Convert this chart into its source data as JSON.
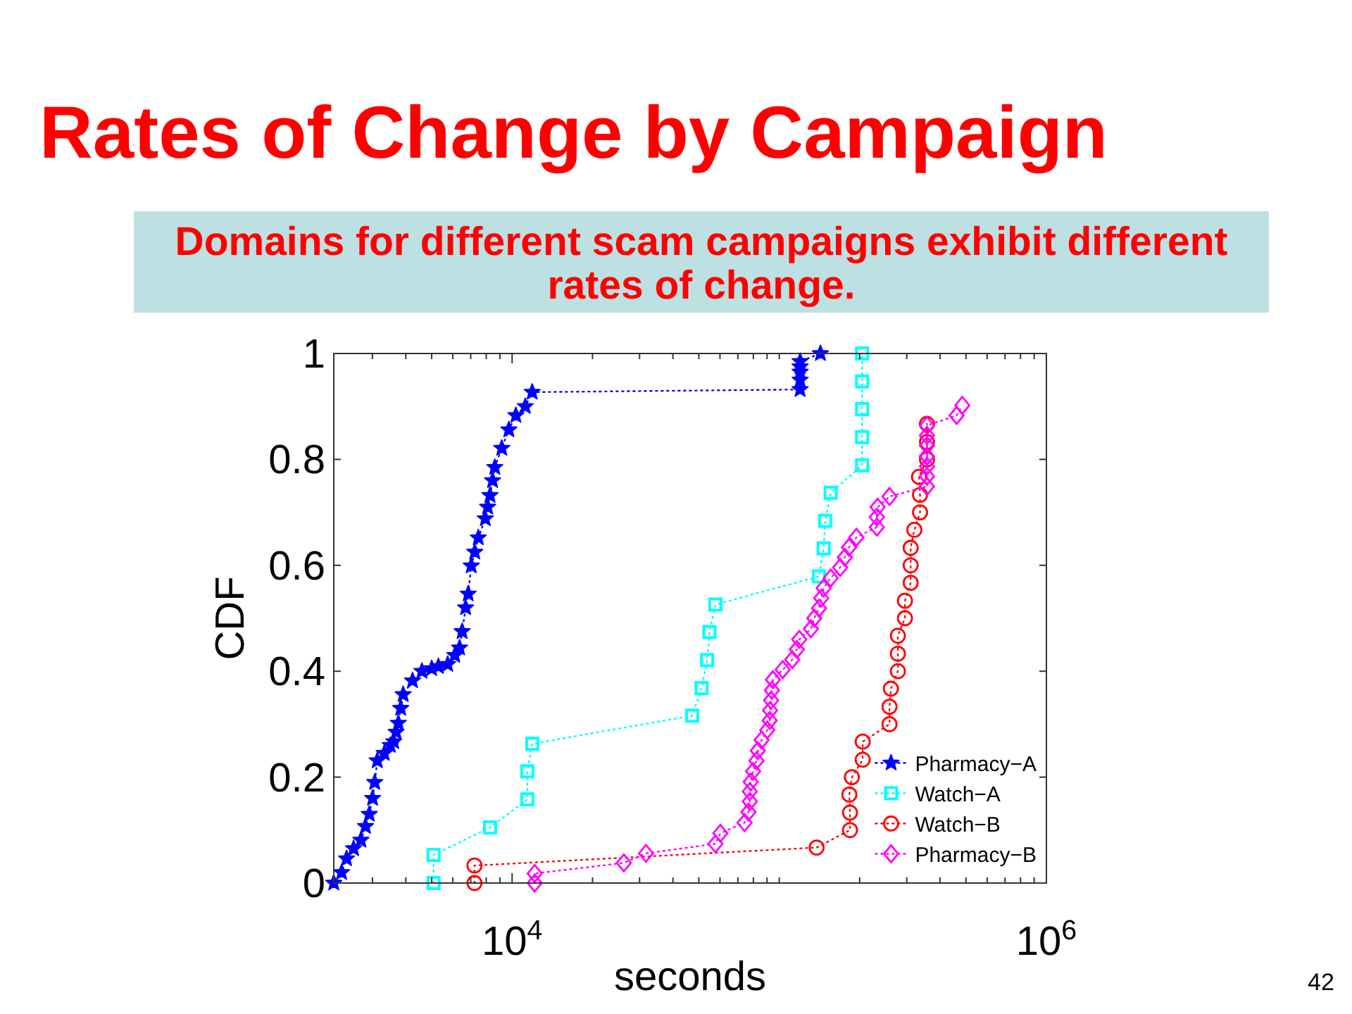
{
  "chart_data": {
    "type": "line",
    "title": "Rates of Change by Campaign",
    "subtitle": "Domains for different scam campaigns exhibit different rates of change.",
    "xlabel": "seconds",
    "ylabel": "CDF",
    "annotations": [
      "42"
    ],
    "log": "x",
    "xlim": [
      2150,
      1000000
    ],
    "ylim": [
      0,
      1
    ],
    "xticks": [
      {
        "value": 3000,
        "label": null
      },
      {
        "value": 4000,
        "label": null
      },
      {
        "value": 5000,
        "label": null
      },
      {
        "value": 6000,
        "label": null
      },
      {
        "value": 7000,
        "label": null
      },
      {
        "value": 8000,
        "label": null
      },
      {
        "value": 9000,
        "label": null
      },
      {
        "value": 10000,
        "label": "10$^{4}$"
      },
      {
        "value": 20000,
        "label": null
      },
      {
        "value": 30000,
        "label": null
      },
      {
        "value": 40000,
        "label": null
      },
      {
        "value": 50000,
        "label": null
      },
      {
        "value": 60000,
        "label": null
      },
      {
        "value": 70000,
        "label": null
      },
      {
        "value": 80000,
        "label": null
      },
      {
        "value": 90000,
        "label": null
      },
      {
        "value": 100000,
        "label": null
      },
      {
        "value": 200000,
        "label": null
      },
      {
        "value": 300000,
        "label": null
      },
      {
        "value": 400000,
        "label": null
      },
      {
        "value": 500000,
        "label": null
      },
      {
        "value": 600000,
        "label": null
      },
      {
        "value": 700000,
        "label": null
      },
      {
        "value": 800000,
        "label": null
      },
      {
        "value": 900000,
        "label": null
      },
      {
        "value": 1000000,
        "label": "10$^{6}$"
      }
    ],
    "yticks": [
      0,
      0.2,
      0.4,
      0.6,
      0.8,
      1
    ],
    "legend": "bottom right",
    "line_style": "dotted",
    "series": [
      {
        "name": "Pharmacy−A",
        "color": "#0000ff",
        "marker": "star",
        "x": [
          2150,
          2300,
          2400,
          2550,
          2716,
          2826,
          2920,
          3004,
          3060,
          3128,
          3322,
          3500,
          3604,
          3680,
          3751,
          3830,
          3910,
          4238,
          4596,
          5000,
          5297,
          5738,
          6100,
          6360,
          6500,
          6700,
          6850,
          7033,
          7250,
          7471,
          7939,
          8100,
          8266,
          8450,
          8614,
          9149,
          9724,
          10330,
          11200,
          11890,
          119700,
          119700,
          119700,
          119700,
          119700,
          142600
        ],
        "values": [
          0,
          0.02,
          0.046,
          0.065,
          0.081,
          0.107,
          0.13,
          0.16,
          0.19,
          0.231,
          0.245,
          0.26,
          0.267,
          0.285,
          0.302,
          0.33,
          0.356,
          0.382,
          0.4,
          0.405,
          0.409,
          0.413,
          0.43,
          0.444,
          0.475,
          0.52,
          0.546,
          0.599,
          0.625,
          0.652,
          0.688,
          0.71,
          0.732,
          0.76,
          0.785,
          0.821,
          0.856,
          0.883,
          0.9,
          0.927,
          0.932,
          0.95,
          0.965,
          0.975,
          0.985,
          1
        ]
      },
      {
        "name": "Watch−A",
        "color": "#00ffff",
        "marker": "square",
        "x": [
          5080,
          5080,
          8270,
          11400,
          11400,
          11900,
          47200,
          51200,
          53700,
          54800,
          57700,
          140900,
          146600,
          148500,
          155800,
          204300,
          204300,
          204300,
          204300,
          204300
        ],
        "values": [
          0,
          0.053,
          0.105,
          0.158,
          0.211,
          0.263,
          0.316,
          0.368,
          0.421,
          0.474,
          0.526,
          0.579,
          0.632,
          0.684,
          0.737,
          0.789,
          0.842,
          0.895,
          0.947,
          1
        ]
      },
      {
        "name": "Watch−B",
        "color": "#ff0000",
        "marker": "circle",
        "x": [
          7230,
          7230,
          138000,
          184000,
          184000,
          183000,
          187000,
          205300,
          205300,
          258700,
          258700,
          261800,
          278000,
          278000,
          278000,
          295500,
          295500,
          310400,
          310400,
          310400,
          320400,
          336500,
          336500,
          333500,
          357300,
          357300,
          357300
        ],
        "values": [
          0,
          0.033,
          0.067,
          0.1,
          0.133,
          0.167,
          0.2,
          0.233,
          0.267,
          0.3,
          0.333,
          0.367,
          0.4,
          0.433,
          0.467,
          0.5,
          0.533,
          0.567,
          0.6,
          0.633,
          0.667,
          0.7,
          0.733,
          0.767,
          0.8,
          0.833,
          0.867
        ]
      },
      {
        "name": "Pharmacy−B",
        "color": "#ff00ff",
        "marker": "diamond",
        "x": [
          12150,
          12150,
          26200,
          31710,
          57700,
          60200,
          74200,
          76700,
          77600,
          77600,
          78200,
          79800,
          82200,
          83100,
          85900,
          90200,
          92100,
          92400,
          93200,
          93900,
          94700,
          103000,
          111900,
          116400,
          118800,
          131400,
          135200,
          140900,
          143600,
          146600,
          155800,
          169100,
          176000,
          182500,
          194600,
          231900,
          231900,
          233500,
          258700,
          357300,
          357300,
          357300,
          357300,
          357300,
          357300,
          357300,
          461300,
          484200
        ],
        "values": [
          0,
          0.018,
          0.038,
          0.056,
          0.074,
          0.094,
          0.114,
          0.134,
          0.154,
          0.173,
          0.191,
          0.211,
          0.231,
          0.25,
          0.27,
          0.289,
          0.307,
          0.326,
          0.345,
          0.364,
          0.384,
          0.403,
          0.422,
          0.441,
          0.46,
          0.48,
          0.5,
          0.519,
          0.538,
          0.557,
          0.576,
          0.596,
          0.615,
          0.634,
          0.653,
          0.672,
          0.691,
          0.71,
          0.73,
          0.749,
          0.768,
          0.787,
          0.806,
          0.826,
          0.845,
          0.864,
          0.883,
          0.902
        ]
      }
    ]
  }
}
